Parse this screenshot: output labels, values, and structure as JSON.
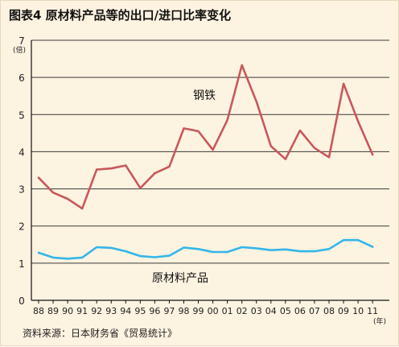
{
  "title": "图表4  原材料产品等的出口/进口比率变化",
  "source": "资料来源：日本财务省《贸易统计》",
  "colors": {
    "background": "#fdf3e1",
    "grid": "#3a3a3a",
    "steel": "#c8585c",
    "raw_materials": "#33b6e8"
  },
  "chart_data": {
    "type": "line",
    "ylabel": "(倍)",
    "xlabel": "(年)",
    "ylim": [
      0,
      7
    ],
    "yticks": [
      "0",
      "1",
      "2",
      "3",
      "4",
      "5",
      "6",
      "7"
    ],
    "grid": "horizontal",
    "categories": [
      "88",
      "89",
      "90",
      "91",
      "92",
      "93",
      "94",
      "95",
      "96",
      "97",
      "98",
      "99",
      "00",
      "01",
      "02",
      "03",
      "04",
      "05",
      "06",
      "07",
      "08",
      "09",
      "10",
      "11"
    ],
    "series": [
      {
        "name": "钢铁",
        "color": "#c8585c",
        "values": [
          3.3,
          2.9,
          2.73,
          2.47,
          3.52,
          3.55,
          3.63,
          3.02,
          3.42,
          3.6,
          4.63,
          4.55,
          4.05,
          4.85,
          6.33,
          5.35,
          4.15,
          3.8,
          4.57,
          4.1,
          3.85,
          5.83,
          4.82,
          3.92
        ]
      },
      {
        "name": "原材料产品",
        "color": "#33b6e8",
        "values": [
          1.28,
          1.15,
          1.12,
          1.15,
          1.43,
          1.41,
          1.32,
          1.19,
          1.16,
          1.2,
          1.42,
          1.38,
          1.3,
          1.3,
          1.43,
          1.4,
          1.35,
          1.37,
          1.32,
          1.32,
          1.38,
          1.62,
          1.62,
          1.44
        ]
      }
    ]
  }
}
